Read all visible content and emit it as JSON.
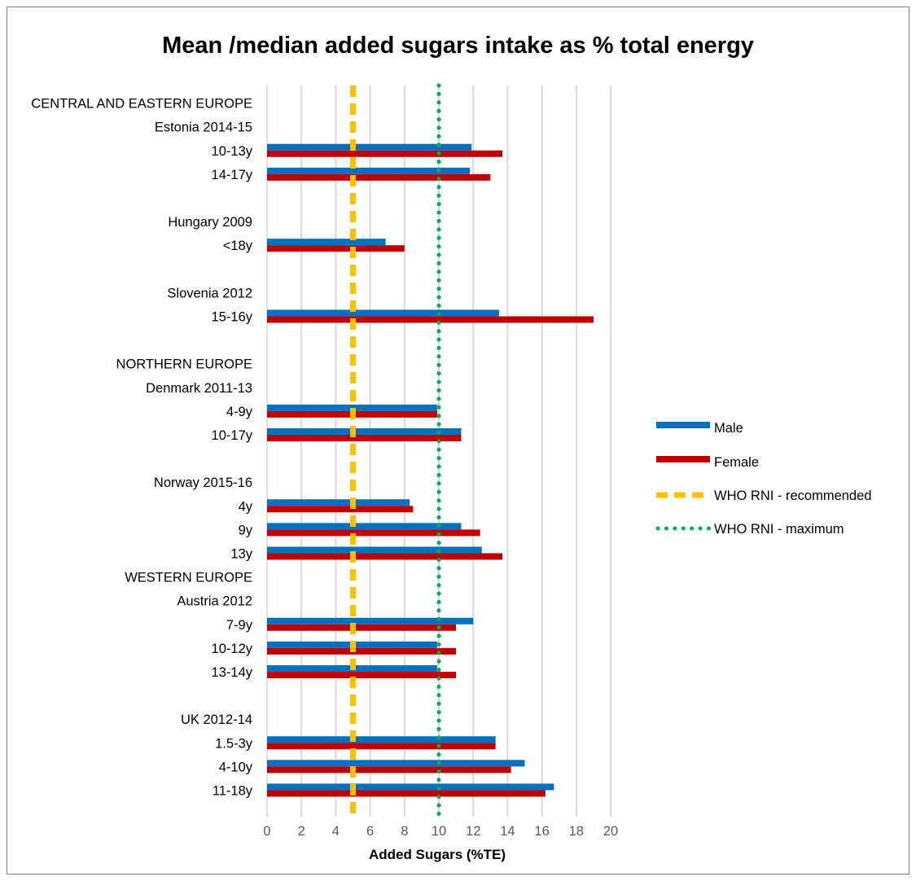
{
  "chart_data": {
    "type": "bar",
    "orientation": "horizontal",
    "title": "Mean /median added sugars intake as % total energy",
    "xlabel": "Added Sugars (%TE)",
    "ylabel": "",
    "xlim": [
      0,
      20
    ],
    "xticks": [
      0,
      2,
      4,
      6,
      8,
      10,
      12,
      14,
      16,
      18,
      20
    ],
    "grid": "vertical",
    "legend_position": "right",
    "categories": [
      "CENTRAL AND EASTERN EUROPE",
      "Estonia 2014-15",
      "10-13y",
      "14-17y",
      "",
      "Hungary 2009",
      "<18y",
      "",
      "Slovenia 2012",
      "15-16y",
      "",
      "NORTHERN EUROPE",
      "Denmark 2011-13",
      "4-9y",
      "10-17y",
      "",
      "Norway 2015-16",
      "4y",
      "9y",
      "13y",
      "WESTERN EUROPE",
      "Austria 2012",
      "7-9y",
      "10-12y",
      "13-14y",
      "",
      "UK 2012-14",
      "1.5-3y",
      "4-10y",
      "11-18y"
    ],
    "series": [
      {
        "name": "Male",
        "color": "#0070c0",
        "values": [
          null,
          null,
          11.9,
          11.8,
          null,
          null,
          6.9,
          null,
          null,
          13.5,
          null,
          null,
          null,
          9.9,
          11.3,
          null,
          null,
          8.3,
          11.3,
          12.5,
          null,
          null,
          12.0,
          9.9,
          9.9,
          null,
          null,
          13.3,
          15.0,
          16.7
        ]
      },
      {
        "name": "Female",
        "color": "#c00000",
        "values": [
          null,
          null,
          13.7,
          13.0,
          null,
          null,
          8.0,
          null,
          null,
          19.0,
          null,
          null,
          null,
          9.9,
          11.3,
          null,
          null,
          8.5,
          12.4,
          13.7,
          null,
          null,
          11.0,
          11.0,
          11.0,
          null,
          null,
          13.3,
          14.2,
          16.2
        ]
      }
    ],
    "reference_lines": [
      {
        "name": "WHO RNI - recommended",
        "value": 5,
        "color": "#ffc000",
        "style": "dashed"
      },
      {
        "name": "WHO RNI - maximum",
        "value": 10,
        "color": "#00b050",
        "style": "dotted"
      }
    ]
  }
}
